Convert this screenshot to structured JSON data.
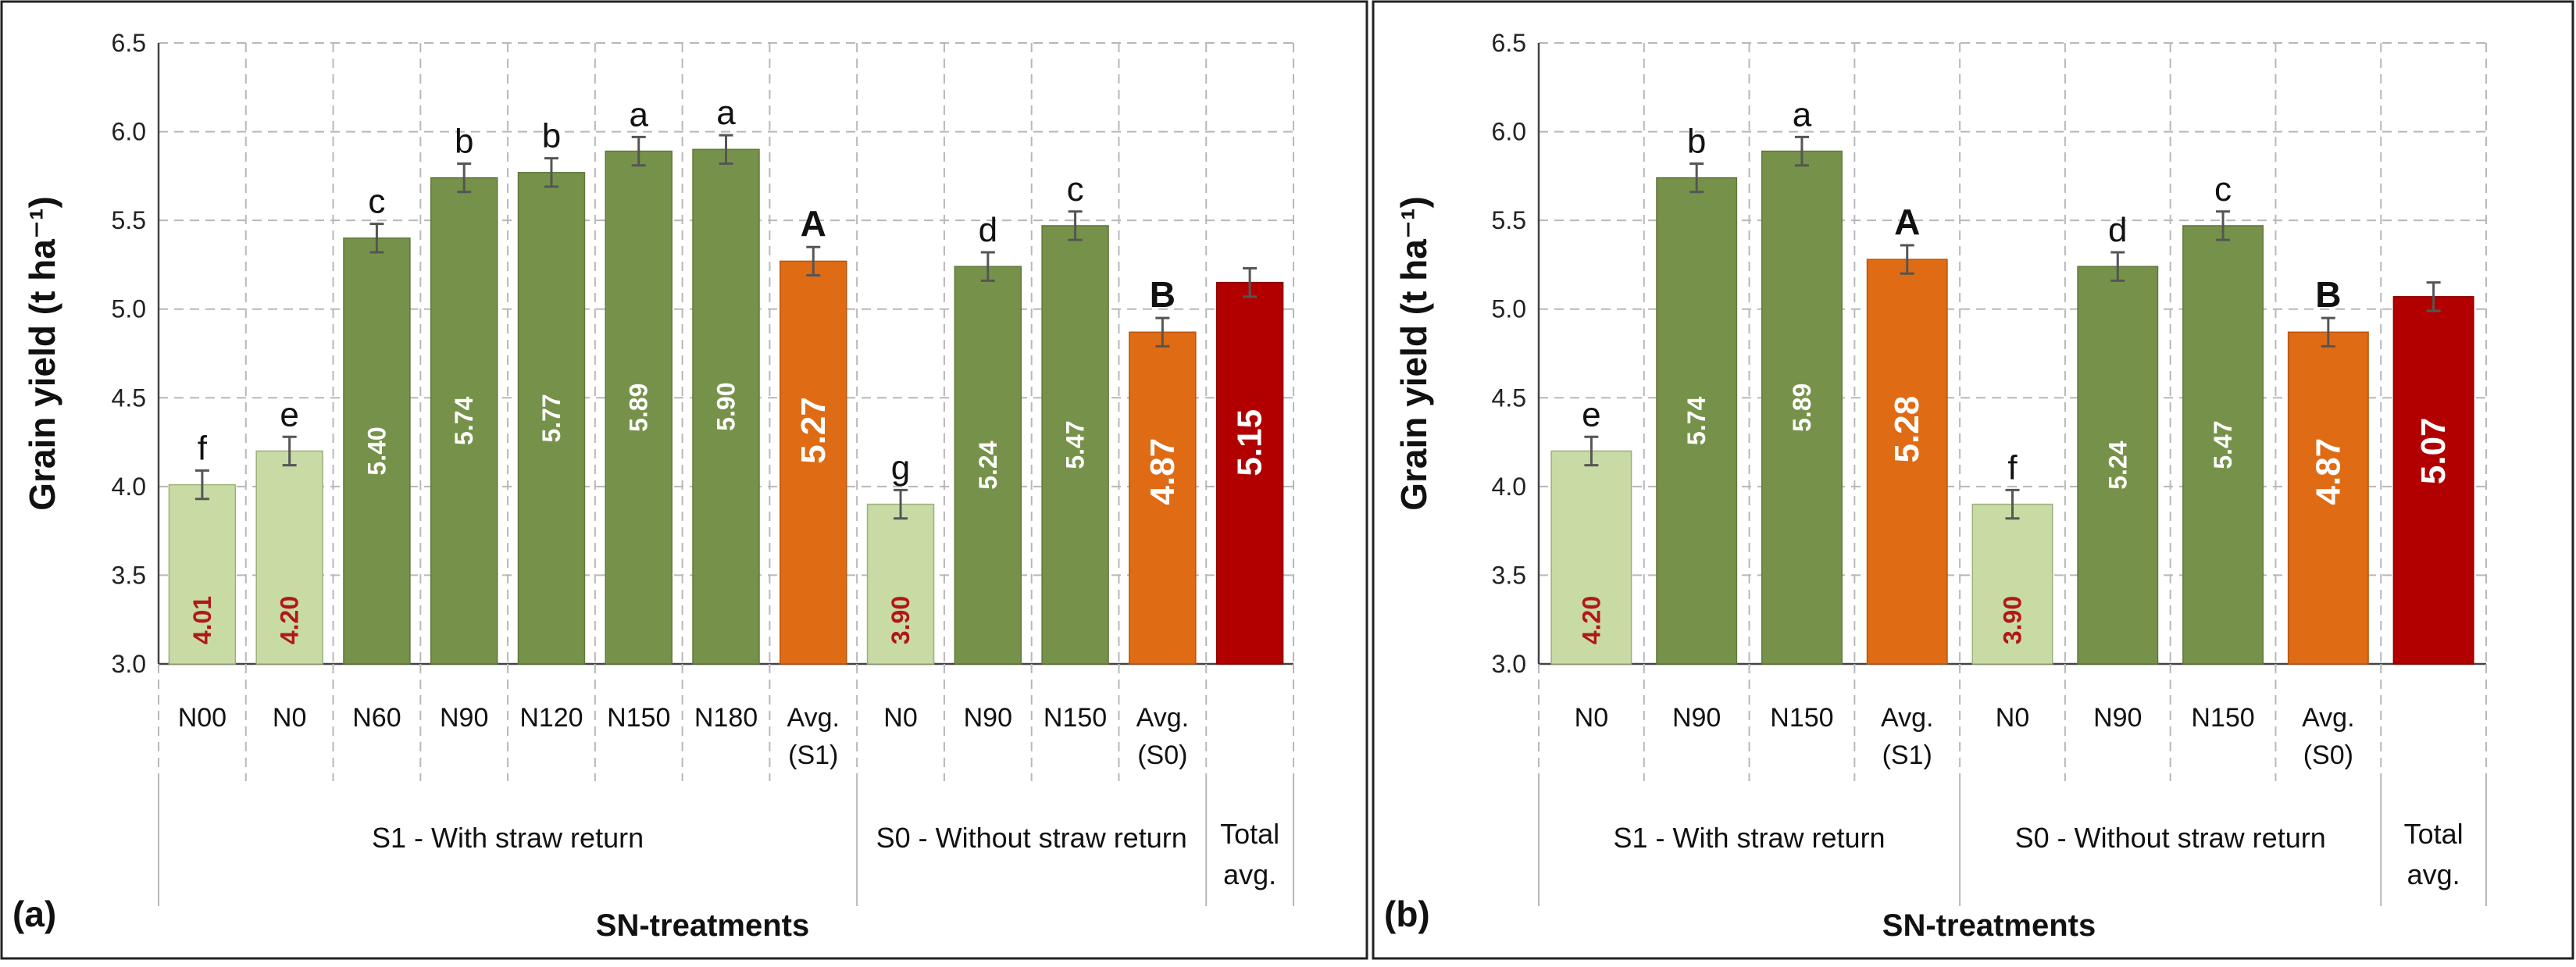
{
  "colors": {
    "light_green": "#C9DBA5",
    "dark_green": "#76924A",
    "orange": "#DF6B15",
    "dark_red": "#B20000",
    "value_red": "#B01818",
    "grid": "#B8B8B8",
    "frame": "#222222",
    "error_bar": "#555555"
  },
  "chart_data": [
    {
      "type": "bar",
      "panel_label": "(a)",
      "ylabel": "Grain yield (t ha⁻¹)",
      "xlabel": "SN-treatments",
      "ylim": [
        3.0,
        6.5
      ],
      "yticks": [
        "3.0",
        "3.5",
        "4.0",
        "4.5",
        "5.0",
        "5.5",
        "6.0",
        "6.5"
      ],
      "grid": true,
      "bars": [
        {
          "category": "N00",
          "value": 4.01,
          "label": "4.01",
          "letter": "f",
          "error": 0.08,
          "style": "light",
          "bold_letter": false
        },
        {
          "category": "N0",
          "value": 4.2,
          "label": "4.20",
          "letter": "e",
          "error": 0.08,
          "style": "light",
          "bold_letter": false
        },
        {
          "category": "N60",
          "value": 5.4,
          "label": "5.40",
          "letter": "c",
          "error": 0.08,
          "style": "green",
          "bold_letter": false
        },
        {
          "category": "N90",
          "value": 5.74,
          "label": "5.74",
          "letter": "b",
          "error": 0.08,
          "style": "green",
          "bold_letter": false
        },
        {
          "category": "N120",
          "value": 5.77,
          "label": "5.77",
          "letter": "b",
          "error": 0.08,
          "style": "green",
          "bold_letter": false
        },
        {
          "category": "N150",
          "value": 5.89,
          "label": "5.89",
          "letter": "a",
          "error": 0.08,
          "style": "green",
          "bold_letter": false
        },
        {
          "category": "N180",
          "value": 5.9,
          "label": "5.90",
          "letter": "a",
          "error": 0.08,
          "style": "green",
          "bold_letter": false
        },
        {
          "category": "Avg.\n(S1)",
          "value": 5.27,
          "label": "5.27",
          "letter": "A",
          "error": 0.08,
          "style": "orange",
          "bold_letter": true
        },
        {
          "category": "N0",
          "value": 3.9,
          "label": "3.90",
          "letter": "g",
          "error": 0.08,
          "style": "light",
          "bold_letter": false
        },
        {
          "category": "N90",
          "value": 5.24,
          "label": "5.24",
          "letter": "d",
          "error": 0.08,
          "style": "green",
          "bold_letter": false
        },
        {
          "category": "N150",
          "value": 5.47,
          "label": "5.47",
          "letter": "c",
          "error": 0.08,
          "style": "green",
          "bold_letter": false
        },
        {
          "category": "Avg.\n(S0)",
          "value": 4.87,
          "label": "4.87",
          "letter": "B",
          "error": 0.08,
          "style": "orange",
          "bold_letter": true
        },
        {
          "category": "",
          "value": 5.15,
          "label": "5.15",
          "letter": "",
          "error": 0.08,
          "style": "red",
          "bold_letter": false
        }
      ],
      "groups": [
        {
          "label": "S1 - With straw return",
          "start": 0,
          "end": 7
        },
        {
          "label": "S0 - Without straw return",
          "start": 8,
          "end": 11
        },
        {
          "label": "Total\navg.",
          "start": 12,
          "end": 12
        }
      ]
    },
    {
      "type": "bar",
      "panel_label": "(b)",
      "ylabel": "Grain yield (t ha⁻¹)",
      "xlabel": "SN-treatments",
      "ylim": [
        3.0,
        6.5
      ],
      "yticks": [
        "3.0",
        "3.5",
        "4.0",
        "4.5",
        "5.0",
        "5.5",
        "6.0",
        "6.5"
      ],
      "grid": true,
      "bars": [
        {
          "category": "N0",
          "value": 4.2,
          "label": "4.20",
          "letter": "e",
          "error": 0.08,
          "style": "light",
          "bold_letter": false
        },
        {
          "category": "N90",
          "value": 5.74,
          "label": "5.74",
          "letter": "b",
          "error": 0.08,
          "style": "green",
          "bold_letter": false
        },
        {
          "category": "N150",
          "value": 5.89,
          "label": "5.89",
          "letter": "a",
          "error": 0.08,
          "style": "green",
          "bold_letter": false
        },
        {
          "category": "Avg.\n(S1)",
          "value": 5.28,
          "label": "5.28",
          "letter": "A",
          "error": 0.08,
          "style": "orange",
          "bold_letter": true
        },
        {
          "category": "N0",
          "value": 3.9,
          "label": "3.90",
          "letter": "f",
          "error": 0.08,
          "style": "light",
          "bold_letter": false
        },
        {
          "category": "N90",
          "value": 5.24,
          "label": "5.24",
          "letter": "d",
          "error": 0.08,
          "style": "green",
          "bold_letter": false
        },
        {
          "category": "N150",
          "value": 5.47,
          "label": "5.47",
          "letter": "c",
          "error": 0.08,
          "style": "green",
          "bold_letter": false
        },
        {
          "category": "Avg.\n(S0)",
          "value": 4.87,
          "label": "4.87",
          "letter": "B",
          "error": 0.08,
          "style": "orange",
          "bold_letter": true
        },
        {
          "category": "",
          "value": 5.07,
          "label": "5.07",
          "letter": "",
          "error": 0.08,
          "style": "red",
          "bold_letter": false
        }
      ],
      "groups": [
        {
          "label": "S1 - With straw return",
          "start": 0,
          "end": 3
        },
        {
          "label": "S0 - Without straw return",
          "start": 4,
          "end": 7
        },
        {
          "label": "Total\navg.",
          "start": 8,
          "end": 8
        }
      ]
    }
  ]
}
